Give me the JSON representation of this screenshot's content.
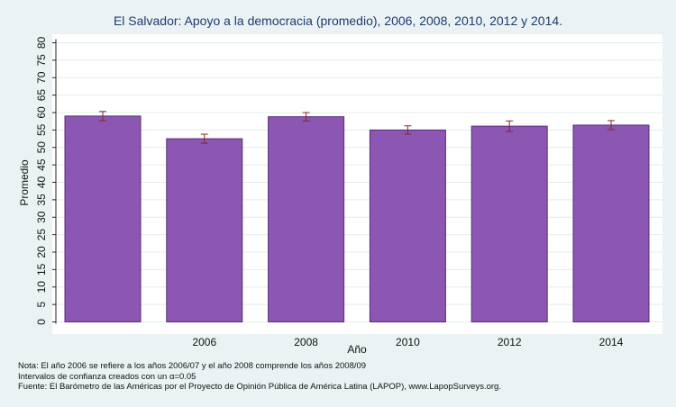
{
  "chart_data": {
    "type": "bar",
    "title": "El Salvador: Apoyo a la democracia (promedio), 2006, 2008, 2010, 2012 y 2014.",
    "xlabel": "Año",
    "ylabel": "Promedio",
    "categories": [
      "",
      "2006",
      "2008",
      "2010",
      "2012",
      "2014"
    ],
    "values": [
      59.0,
      52.5,
      58.8,
      55.0,
      56.1,
      56.4
    ],
    "ci_low": [
      57.7,
      51.2,
      57.6,
      53.8,
      54.6,
      55.1
    ],
    "ci_high": [
      60.3,
      53.8,
      60.0,
      56.2,
      57.6,
      57.7
    ],
    "ylim": [
      0,
      80
    ],
    "yticks": [
      0,
      5,
      10,
      15,
      20,
      25,
      30,
      35,
      40,
      45,
      50,
      55,
      60,
      65,
      70,
      75,
      80
    ],
    "grid": true,
    "bar_color": "#8b57b3",
    "bar_edge_color": "#5b2a7a",
    "errorbar_color": "#8b2323",
    "background_color": "#eaf2f3",
    "plot_background_color": "#ffffff"
  },
  "notes": {
    "line1": "Nota: El año 2006 se refiere a los años 2006/07 y el año 2008 comprende los años 2008/09",
    "line2": "Intervalos de confianza creados con un α=0.05",
    "line3": "Fuente: El Barómetro de las Américas por el Proyecto de Opinión Pública de América Latina (LAPOP), www.LapopSurveys.org."
  }
}
